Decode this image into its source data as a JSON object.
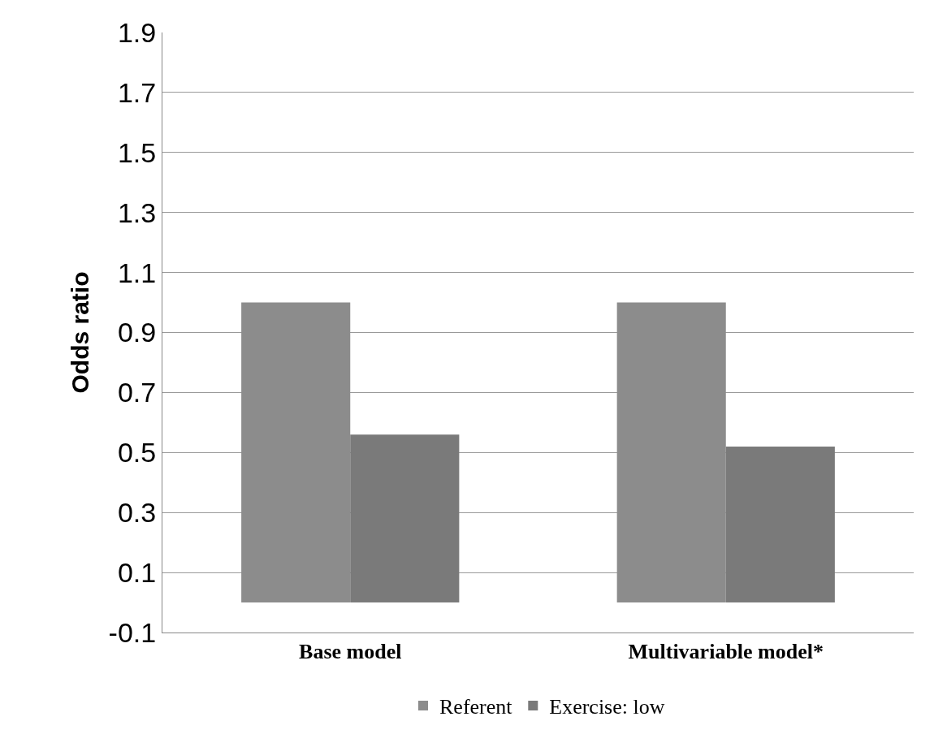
{
  "chart_data": {
    "type": "bar",
    "ylabel": "Odds ratio",
    "categories": [
      "Base model",
      "Multivariable model*"
    ],
    "series": [
      {
        "name": "Referent",
        "color": "#8c8c8c",
        "values": [
          1.0,
          1.0
        ]
      },
      {
        "name": "Exercise: low",
        "color": "#7a7a7a",
        "values": [
          0.56,
          0.52
        ]
      }
    ],
    "ylim": [
      -0.1,
      1.9
    ],
    "yticks": [
      -0.1,
      0.1,
      0.3,
      0.5,
      0.7,
      0.9,
      1.1,
      1.3,
      1.5,
      1.7,
      1.9
    ],
    "grid": "y",
    "legend": "bottom"
  }
}
